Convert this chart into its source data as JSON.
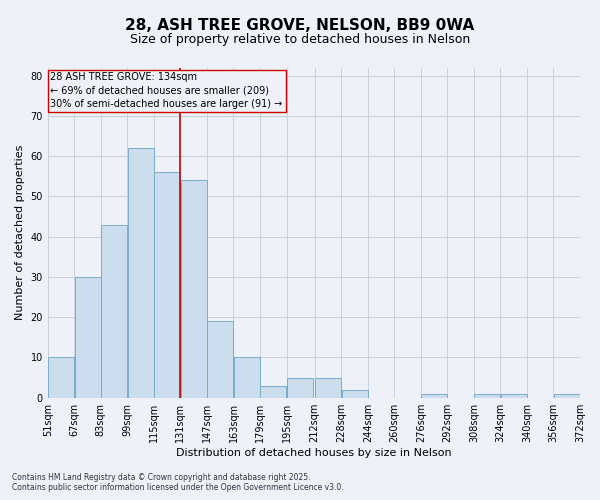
{
  "title_line1": "28, ASH TREE GROVE, NELSON, BB9 0WA",
  "title_line2": "Size of property relative to detached houses in Nelson",
  "xlabel": "Distribution of detached houses by size in Nelson",
  "ylabel": "Number of detached properties",
  "bar_color": "#ccdded",
  "bar_edge_color": "#7aabcc",
  "grid_color": "#c8d0dc",
  "background_color": "#eef2f8",
  "vline_color": "#cc0000",
  "vline_x": 131,
  "bins": [
    51,
    67,
    83,
    99,
    115,
    131,
    147,
    163,
    179,
    195,
    212,
    228,
    244,
    260,
    276,
    292,
    308,
    324,
    340,
    356,
    372
  ],
  "counts": [
    10,
    30,
    43,
    62,
    56,
    54,
    19,
    10,
    3,
    5,
    5,
    2,
    0,
    0,
    1,
    0,
    1,
    1,
    0,
    1
  ],
  "xlim_left": 51,
  "xlim_right": 372,
  "ylim_top": 82,
  "yticks": [
    0,
    10,
    20,
    30,
    40,
    50,
    60,
    70,
    80
  ],
  "annotation_title": "28 ASH TREE GROVE: 134sqm",
  "annotation_line2": "← 69% of detached houses are smaller (209)",
  "annotation_line3": "30% of semi-detached houses are larger (91) →",
  "footnote_line1": "Contains HM Land Registry data © Crown copyright and database right 2025.",
  "footnote_line2": "Contains public sector information licensed under the Open Government Licence v3.0.",
  "title_fontsize": 11,
  "subtitle_fontsize": 9,
  "tick_fontsize": 7,
  "ylabel_fontsize": 8,
  "xlabel_fontsize": 8,
  "annotation_fontsize": 7,
  "footnote_fontsize": 5.5
}
